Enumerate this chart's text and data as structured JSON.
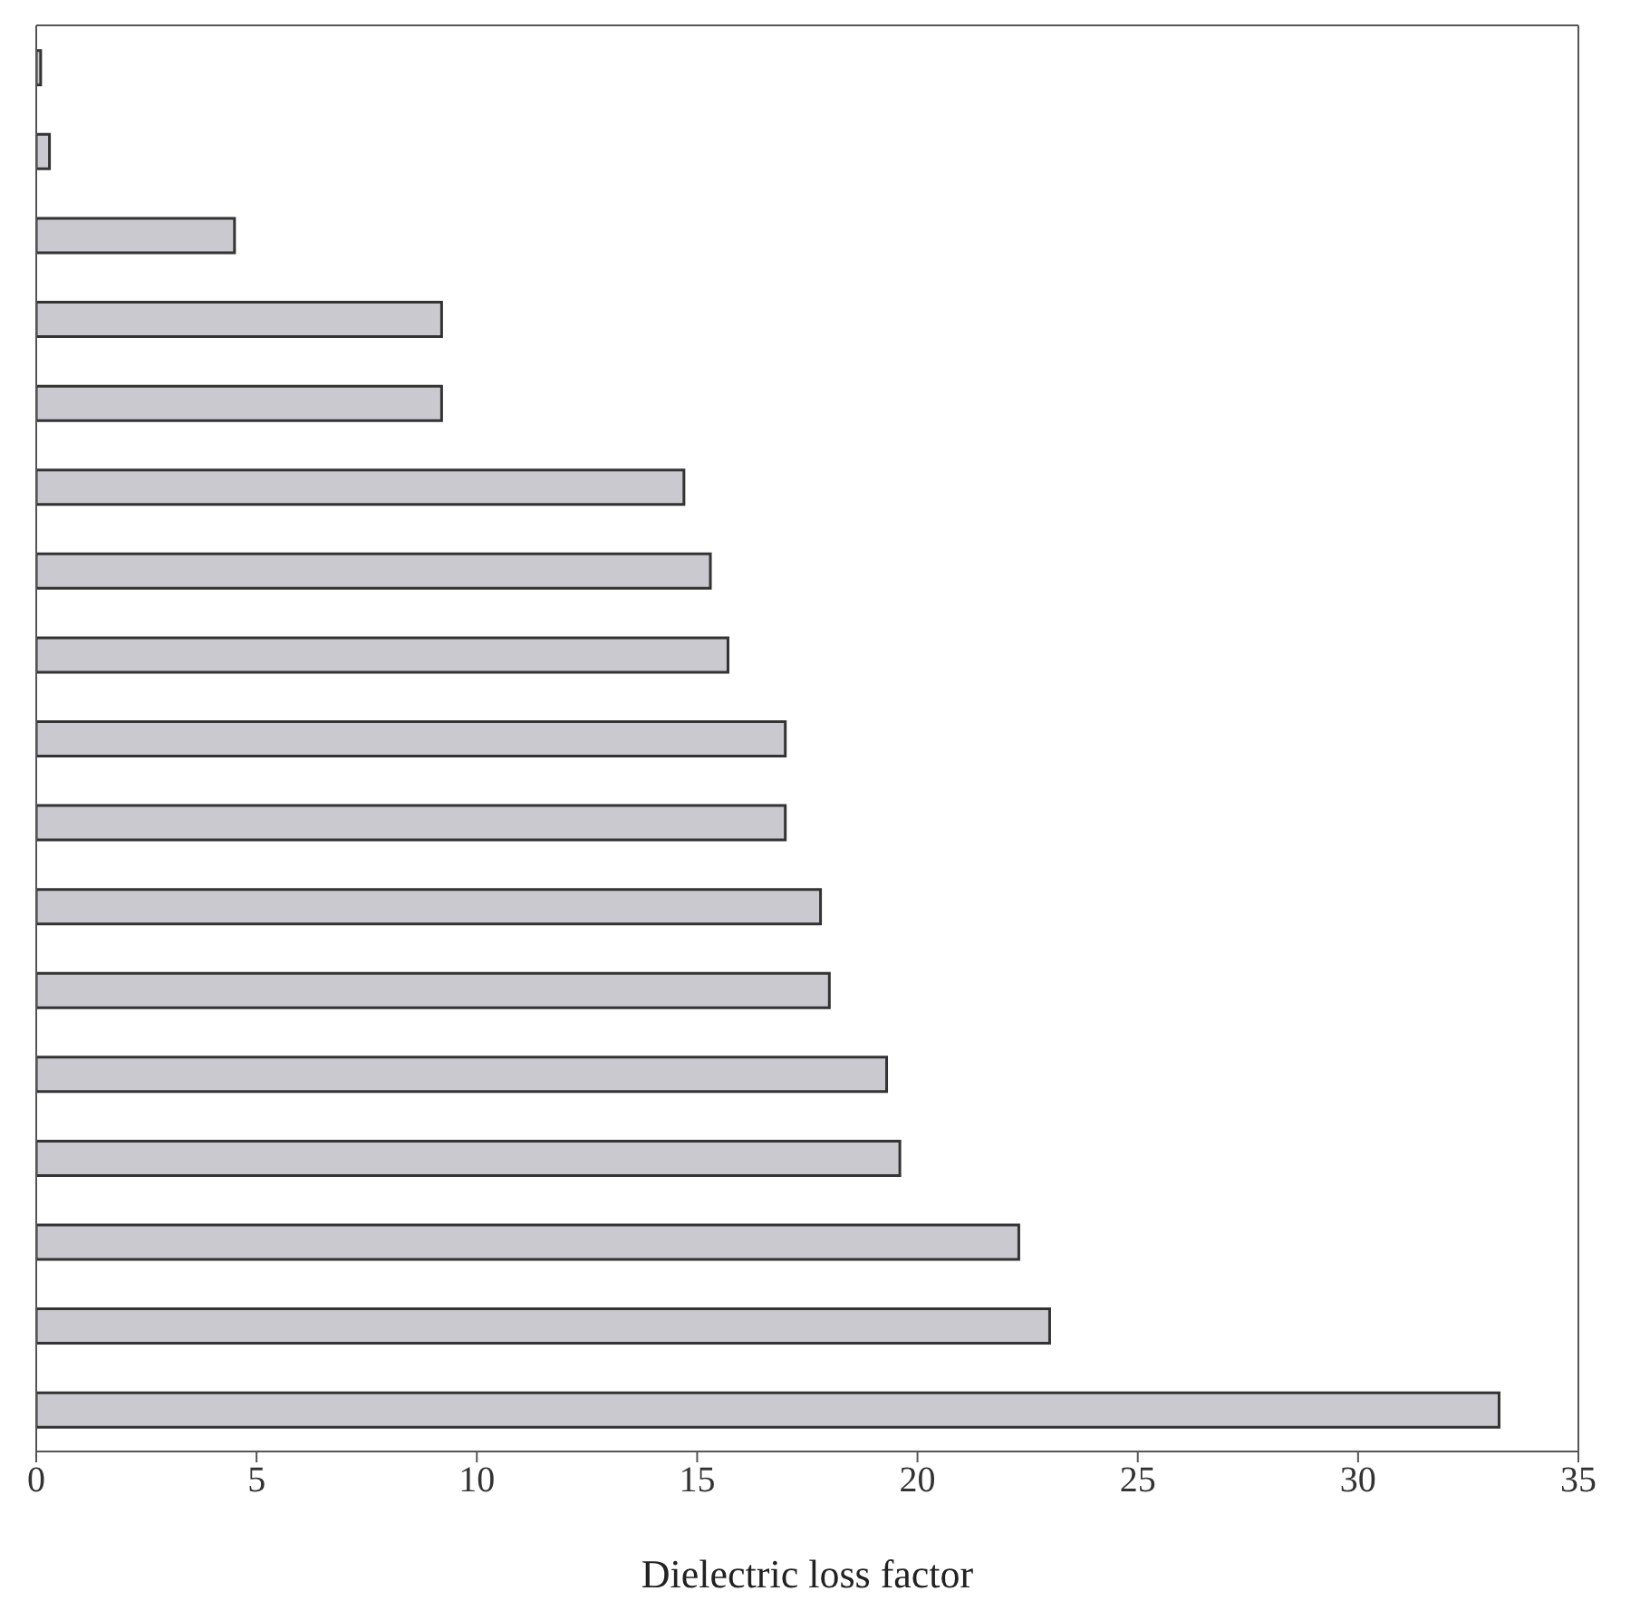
{
  "chart_data": {
    "type": "bar",
    "orientation": "horizontal",
    "xlabel": "Dielectric loss factor",
    "categories": [
      null,
      null,
      null,
      null,
      null,
      null,
      null,
      null,
      null,
      null,
      null,
      null,
      null,
      null,
      null,
      null,
      null
    ],
    "values": [
      0.1,
      0.3,
      4.5,
      9.2,
      9.2,
      14.7,
      15.3,
      15.7,
      17.0,
      17.0,
      17.8,
      18.0,
      19.3,
      19.6,
      22.3,
      23.0,
      33.2
    ],
    "color": "#c9c9cf",
    "xlim": [
      0,
      35
    ],
    "xticks": [
      0,
      5,
      10,
      15,
      20,
      25,
      30,
      35
    ],
    "tick_labels": "x"
  }
}
